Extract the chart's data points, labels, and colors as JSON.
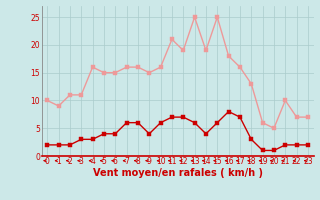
{
  "hours": [
    0,
    1,
    2,
    3,
    4,
    5,
    6,
    7,
    8,
    9,
    10,
    11,
    12,
    13,
    14,
    15,
    16,
    17,
    18,
    19,
    20,
    21,
    22,
    23
  ],
  "wind_avg": [
    2,
    2,
    2,
    3,
    3,
    4,
    4,
    6,
    6,
    4,
    6,
    7,
    7,
    6,
    4,
    6,
    8,
    7,
    3,
    1,
    1,
    2,
    2,
    2
  ],
  "wind_gust": [
    10,
    9,
    11,
    11,
    16,
    15,
    15,
    16,
    16,
    15,
    16,
    21,
    19,
    25,
    19,
    25,
    18,
    16,
    13,
    6,
    5,
    10,
    7,
    7
  ],
  "bg_color": "#cce8e8",
  "grid_color": "#aacccc",
  "avg_color": "#cc0000",
  "gust_color": "#ee9999",
  "xlabel": "Vent moyen/en rafales ( km/h )",
  "ylim": [
    0,
    27
  ],
  "yticks": [
    0,
    5,
    10,
    15,
    20,
    25
  ],
  "markersize": 2.5,
  "linewidth": 1.0,
  "tick_fontsize": 5.5,
  "xlabel_fontsize": 7.0
}
